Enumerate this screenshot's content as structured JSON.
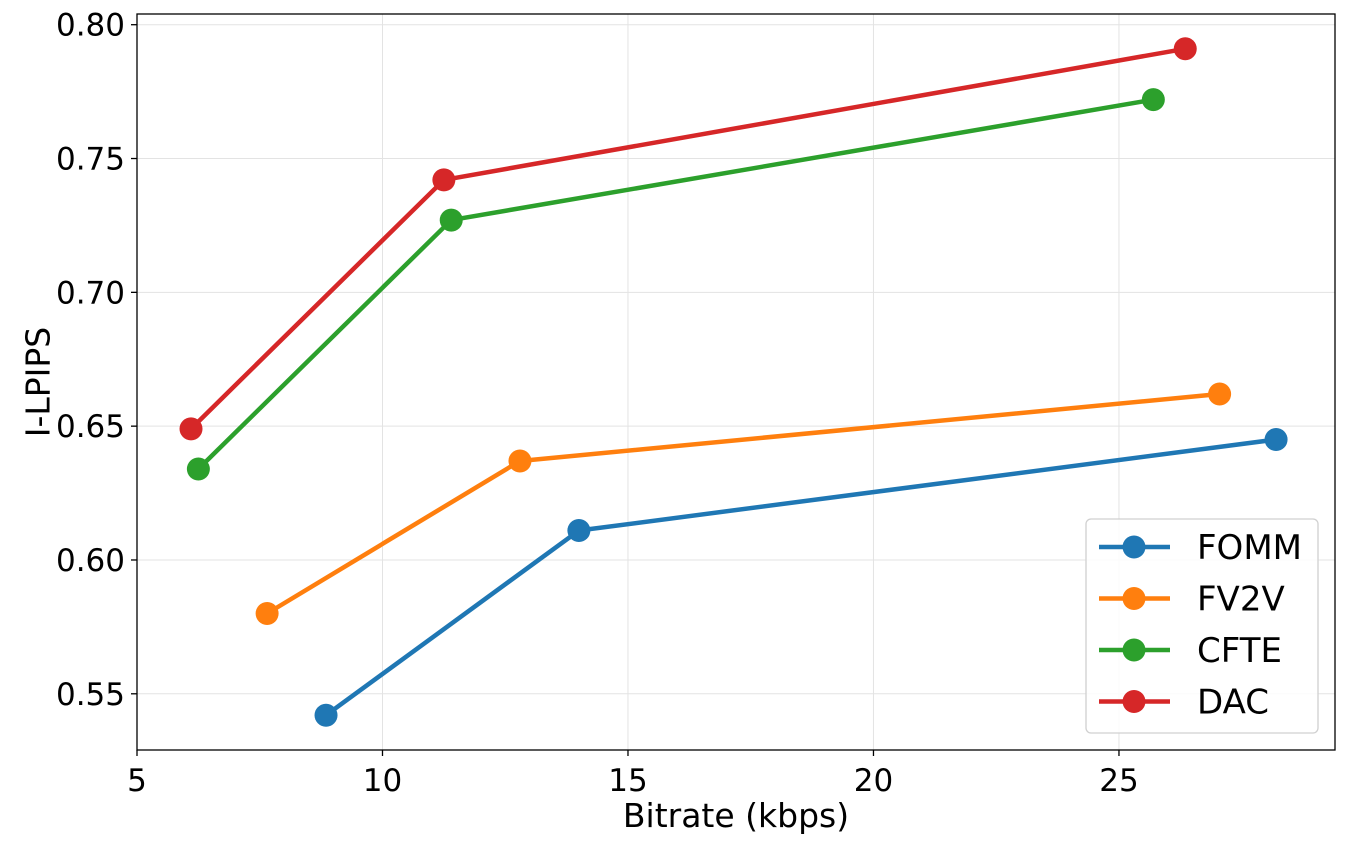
{
  "chart_data": {
    "type": "line",
    "title": "",
    "xlabel": "Bitrate (kbps)",
    "ylabel": "I-LPIPS",
    "xlim": [
      5,
      29.4
    ],
    "ylim": [
      0.529,
      0.804
    ],
    "grid": true,
    "legend_position": "bottom-right",
    "xticks": [
      5,
      10,
      15,
      20,
      25
    ],
    "xtick_labels": [
      "5",
      "10",
      "15",
      "20",
      "25"
    ],
    "yticks": [
      0.55,
      0.6,
      0.65,
      0.7,
      0.75,
      0.8
    ],
    "ytick_labels": [
      "0.55",
      "0.60",
      "0.65",
      "0.70",
      "0.75",
      "0.80"
    ],
    "series": [
      {
        "name": "FOMM",
        "color": "#1f77b4",
        "x": [
          8.85,
          14.0,
          28.2
        ],
        "y": [
          0.542,
          0.611,
          0.645
        ]
      },
      {
        "name": "FV2V",
        "color": "#ff7f0e",
        "x": [
          7.65,
          12.8,
          27.05
        ],
        "y": [
          0.58,
          0.637,
          0.662
        ]
      },
      {
        "name": "CFTE",
        "color": "#2ca02c",
        "x": [
          6.25,
          11.4,
          25.7
        ],
        "y": [
          0.634,
          0.727,
          0.772
        ]
      },
      {
        "name": "DAC",
        "color": "#d62728",
        "x": [
          6.1,
          11.25,
          26.35
        ],
        "y": [
          0.649,
          0.742,
          0.791
        ]
      }
    ]
  }
}
